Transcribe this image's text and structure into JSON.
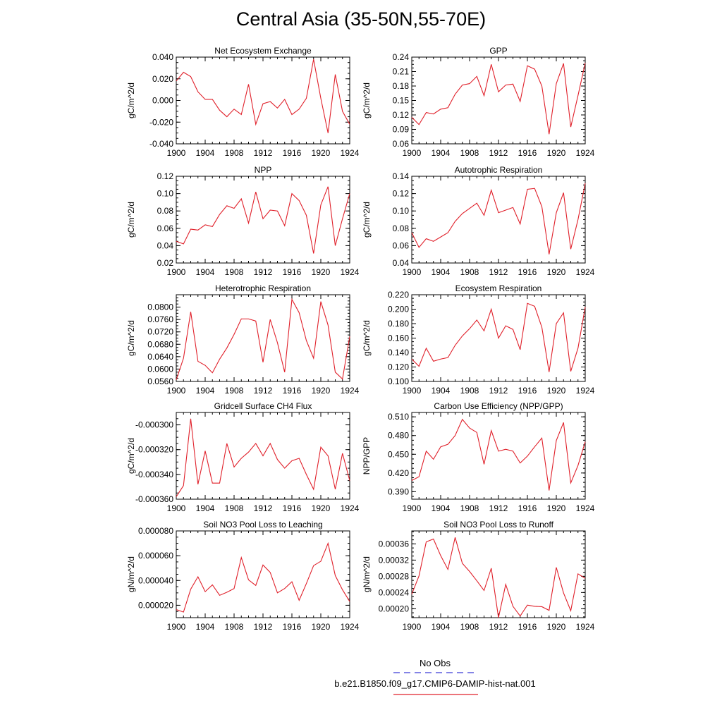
{
  "page": {
    "title": "Central Asia (35-50N,55-70E)"
  },
  "colors": {
    "model": "#e0202a",
    "obs": "#3b3bd6",
    "axis": "#000000"
  },
  "legend": [
    {
      "label": "No Obs",
      "style": "dashed",
      "color": "#3b3bd6"
    },
    {
      "label": "b.e21.B1850.f09_g17.CMIP6-DAMIP-hist-nat.001",
      "style": "solid",
      "color": "#e0202a"
    }
  ],
  "chart_data": [
    {
      "type": "line",
      "title": "Net Ecosystem Exchange",
      "ylabel": "gC/m^2/d",
      "xlim": [
        1900,
        1924
      ],
      "ylim": [
        -0.04,
        0.04
      ],
      "xticks": [
        1900,
        1904,
        1908,
        1912,
        1916,
        1920,
        1924
      ],
      "yticks": [
        -0.04,
        -0.02,
        0.0,
        0.02,
        0.04
      ],
      "ytick_decimals": 3,
      "x": [
        1900,
        1901,
        1902,
        1903,
        1904,
        1905,
        1906,
        1907,
        1908,
        1909,
        1910,
        1911,
        1912,
        1913,
        1914,
        1915,
        1916,
        1917,
        1918,
        1919,
        1920,
        1921,
        1922,
        1923,
        1924
      ],
      "series": [
        {
          "values": [
            0.018,
            0.026,
            0.022,
            0.008,
            0.001,
            0.001,
            -0.009,
            -0.015,
            -0.008,
            -0.013,
            0.015,
            -0.022,
            -0.003,
            -0.001,
            -0.007,
            0.001,
            -0.013,
            -0.008,
            0.002,
            0.038,
            0.002,
            -0.03,
            0.024,
            -0.01,
            -0.022
          ]
        }
      ]
    },
    {
      "type": "line",
      "title": "GPP",
      "ylabel": "gC/m^2/d",
      "xlim": [
        1900,
        1924
      ],
      "ylim": [
        0.06,
        0.24
      ],
      "xticks": [
        1900,
        1904,
        1908,
        1912,
        1916,
        1920,
        1924
      ],
      "yticks": [
        0.06,
        0.09,
        0.12,
        0.15,
        0.18,
        0.21,
        0.24
      ],
      "ytick_decimals": 2,
      "x": [
        1900,
        1901,
        1902,
        1903,
        1904,
        1905,
        1906,
        1907,
        1908,
        1909,
        1910,
        1911,
        1912,
        1913,
        1914,
        1915,
        1916,
        1917,
        1918,
        1919,
        1920,
        1921,
        1922,
        1923,
        1924
      ],
      "series": [
        {
          "values": [
            0.115,
            0.1,
            0.125,
            0.122,
            0.132,
            0.135,
            0.163,
            0.182,
            0.185,
            0.2,
            0.16,
            0.225,
            0.168,
            0.182,
            0.184,
            0.148,
            0.222,
            0.215,
            0.18,
            0.08,
            0.185,
            0.227,
            0.095,
            0.16,
            0.228
          ]
        }
      ]
    },
    {
      "type": "line",
      "title": "NPP",
      "ylabel": "gC/m^2/d",
      "xlim": [
        1900,
        1924
      ],
      "ylim": [
        0.02,
        0.12
      ],
      "xticks": [
        1900,
        1904,
        1908,
        1912,
        1916,
        1920,
        1924
      ],
      "yticks": [
        0.02,
        0.04,
        0.06,
        0.08,
        0.1,
        0.12
      ],
      "ytick_decimals": 2,
      "x": [
        1900,
        1901,
        1902,
        1903,
        1904,
        1905,
        1906,
        1907,
        1908,
        1909,
        1910,
        1911,
        1912,
        1913,
        1914,
        1915,
        1916,
        1917,
        1918,
        1919,
        1920,
        1921,
        1922,
        1923,
        1924
      ],
      "series": [
        {
          "values": [
            0.045,
            0.042,
            0.059,
            0.058,
            0.064,
            0.062,
            0.076,
            0.086,
            0.083,
            0.094,
            0.066,
            0.102,
            0.071,
            0.081,
            0.08,
            0.063,
            0.1,
            0.092,
            0.075,
            0.031,
            0.087,
            0.108,
            0.04,
            0.071,
            0.1
          ]
        }
      ]
    },
    {
      "type": "line",
      "title": "Autotrophic Respiration",
      "ylabel": "gC/m^2/d",
      "xlim": [
        1900,
        1924
      ],
      "ylim": [
        0.04,
        0.14
      ],
      "xticks": [
        1900,
        1904,
        1908,
        1912,
        1916,
        1920,
        1924
      ],
      "yticks": [
        0.04,
        0.06,
        0.08,
        0.1,
        0.12,
        0.14
      ],
      "ytick_decimals": 2,
      "x": [
        1900,
        1901,
        1902,
        1903,
        1904,
        1905,
        1906,
        1907,
        1908,
        1909,
        1910,
        1911,
        1912,
        1913,
        1914,
        1915,
        1916,
        1917,
        1918,
        1919,
        1920,
        1921,
        1922,
        1923,
        1924
      ],
      "series": [
        {
          "values": [
            0.075,
            0.058,
            0.068,
            0.065,
            0.07,
            0.075,
            0.088,
            0.097,
            0.103,
            0.109,
            0.095,
            0.124,
            0.098,
            0.101,
            0.104,
            0.085,
            0.125,
            0.126,
            0.105,
            0.05,
            0.098,
            0.121,
            0.056,
            0.09,
            0.132
          ]
        }
      ]
    },
    {
      "type": "line",
      "title": "Heterotrophic Respiration",
      "ylabel": "gC/m^2/d",
      "xlim": [
        1900,
        1924
      ],
      "ylim": [
        0.056,
        0.084
      ],
      "xticks": [
        1900,
        1904,
        1908,
        1912,
        1916,
        1920,
        1924
      ],
      "yticks": [
        0.056,
        0.06,
        0.064,
        0.068,
        0.072,
        0.076,
        0.08
      ],
      "ytick_decimals": 4,
      "x": [
        1900,
        1901,
        1902,
        1903,
        1904,
        1905,
        1906,
        1907,
        1908,
        1909,
        1910,
        1911,
        1912,
        1913,
        1914,
        1915,
        1916,
        1917,
        1918,
        1919,
        1920,
        1921,
        1922,
        1923,
        1924
      ],
      "series": [
        {
          "values": [
            0.0565,
            0.0635,
            0.0785,
            0.0625,
            0.0612,
            0.0588,
            0.0632,
            0.0668,
            0.0712,
            0.0762,
            0.0762,
            0.0755,
            0.0622,
            0.076,
            0.0685,
            0.059,
            0.0825,
            0.0782,
            0.0692,
            0.0635,
            0.0818,
            0.0742,
            0.059,
            0.0568,
            0.0705
          ]
        }
      ]
    },
    {
      "type": "line",
      "title": "Ecosystem Respiration",
      "ylabel": "gC/m^2/d",
      "xlim": [
        1900,
        1924
      ],
      "ylim": [
        0.1,
        0.22
      ],
      "xticks": [
        1900,
        1904,
        1908,
        1912,
        1916,
        1920,
        1924
      ],
      "yticks": [
        0.1,
        0.12,
        0.14,
        0.16,
        0.18,
        0.2,
        0.22
      ],
      "ytick_decimals": 3,
      "x": [
        1900,
        1901,
        1902,
        1903,
        1904,
        1905,
        1906,
        1907,
        1908,
        1909,
        1910,
        1911,
        1912,
        1913,
        1914,
        1915,
        1916,
        1917,
        1918,
        1919,
        1920,
        1921,
        1922,
        1923,
        1924
      ],
      "series": [
        {
          "values": [
            0.131,
            0.121,
            0.146,
            0.128,
            0.131,
            0.133,
            0.15,
            0.163,
            0.173,
            0.185,
            0.17,
            0.2,
            0.16,
            0.177,
            0.172,
            0.144,
            0.208,
            0.204,
            0.175,
            0.113,
            0.18,
            0.195,
            0.114,
            0.146,
            0.203
          ]
        }
      ]
    },
    {
      "type": "line",
      "title": "Gridcell Surface CH4 Flux",
      "ylabel": "gC/m^2/d",
      "xlim": [
        1900,
        1924
      ],
      "ylim": [
        -0.00036,
        -0.00029
      ],
      "xticks": [
        1900,
        1904,
        1908,
        1912,
        1916,
        1920,
        1924
      ],
      "yticks": [
        -0.00036,
        -0.00034,
        -0.00032,
        -0.0003
      ],
      "ytick_decimals": 6,
      "x": [
        1900,
        1901,
        1902,
        1903,
        1904,
        1905,
        1906,
        1907,
        1908,
        1909,
        1910,
        1911,
        1912,
        1913,
        1914,
        1915,
        1916,
        1917,
        1918,
        1919,
        1920,
        1921,
        1922,
        1923,
        1924
      ],
      "series": [
        {
          "values": [
            -0.000358,
            -0.000349,
            -0.000295,
            -0.000348,
            -0.000321,
            -0.000347,
            -0.000347,
            -0.000315,
            -0.000334,
            -0.000327,
            -0.000322,
            -0.000315,
            -0.000325,
            -0.000315,
            -0.000328,
            -0.000335,
            -0.000329,
            -0.000327,
            -0.00034,
            -0.000352,
            -0.000318,
            -0.000325,
            -0.000352,
            -0.000323,
            -0.000345
          ]
        }
      ]
    },
    {
      "type": "line",
      "title": "Carbon Use Efficiency (NPP/GPP)",
      "ylabel": "NPP/GPP",
      "xlim": [
        1900,
        1924
      ],
      "ylim": [
        0.378,
        0.517
      ],
      "xticks": [
        1900,
        1904,
        1908,
        1912,
        1916,
        1920,
        1924
      ],
      "yticks": [
        0.39,
        0.42,
        0.45,
        0.48,
        0.51
      ],
      "ytick_decimals": 3,
      "x": [
        1900,
        1901,
        1902,
        1903,
        1904,
        1905,
        1906,
        1907,
        1908,
        1909,
        1910,
        1911,
        1912,
        1913,
        1914,
        1915,
        1916,
        1917,
        1918,
        1919,
        1920,
        1921,
        1922,
        1923,
        1924
      ],
      "series": [
        {
          "values": [
            0.408,
            0.414,
            0.455,
            0.442,
            0.462,
            0.466,
            0.48,
            0.506,
            0.492,
            0.485,
            0.434,
            0.488,
            0.455,
            0.458,
            0.455,
            0.436,
            0.447,
            0.462,
            0.476,
            0.392,
            0.472,
            0.501,
            0.404,
            0.432,
            0.47
          ]
        }
      ]
    },
    {
      "type": "line",
      "title": "Soil NO3 Pool Loss to Leaching",
      "ylabel": "gN/m^2/d",
      "xlim": [
        1900,
        1924
      ],
      "ylim": [
        1e-05,
        8e-05
      ],
      "xticks": [
        1900,
        1904,
        1908,
        1912,
        1916,
        1920,
        1924
      ],
      "yticks": [
        2e-05,
        4e-05,
        6e-05,
        8e-05
      ],
      "ytick_decimals": 6,
      "x": [
        1900,
        1901,
        1902,
        1903,
        1904,
        1905,
        1906,
        1907,
        1908,
        1909,
        1910,
        1911,
        1912,
        1913,
        1914,
        1915,
        1916,
        1917,
        1918,
        1919,
        1920,
        1921,
        1922,
        1923,
        1924
      ],
      "series": [
        {
          "values": [
            1.65e-05,
            1.45e-05,
            3.3e-05,
            4.3e-05,
            3.1e-05,
            3.65e-05,
            2.8e-05,
            3.05e-05,
            3.35e-05,
            5.85e-05,
            4.05e-05,
            3.6e-05,
            5.25e-05,
            4.65e-05,
            3e-05,
            3.35e-05,
            3.9e-05,
            2.4e-05,
            3.75e-05,
            5.2e-05,
            5.55e-05,
            7e-05,
            4.4e-05,
            3.25e-05,
            2.3e-05
          ]
        }
      ]
    },
    {
      "type": "line",
      "title": "Soil NO3 Pool Loss to Runoff",
      "ylabel": "gN/m^2/d",
      "xlim": [
        1900,
        1924
      ],
      "ylim": [
        0.000178,
        0.000392
      ],
      "xticks": [
        1900,
        1904,
        1908,
        1912,
        1916,
        1920,
        1924
      ],
      "yticks": [
        0.0002,
        0.00024,
        0.00028,
        0.00032,
        0.00036
      ],
      "ytick_decimals": 5,
      "x": [
        1900,
        1901,
        1902,
        1903,
        1904,
        1905,
        1906,
        1907,
        1908,
        1909,
        1910,
        1911,
        1912,
        1913,
        1914,
        1915,
        1916,
        1917,
        1918,
        1919,
        1920,
        1921,
        1922,
        1923,
        1924
      ],
      "series": [
        {
          "values": [
            0.000236,
            0.000281,
            0.000365,
            0.000372,
            0.000331,
            0.000297,
            0.000376,
            0.000312,
            0.000292,
            0.000269,
            0.000245,
            0.0003,
            0.000178,
            0.00026,
            0.000206,
            0.000182,
            0.000209,
            0.000206,
            0.000205,
            0.000196,
            0.000302,
            0.000239,
            0.000195,
            0.000286,
            0.000275
          ]
        }
      ]
    }
  ]
}
